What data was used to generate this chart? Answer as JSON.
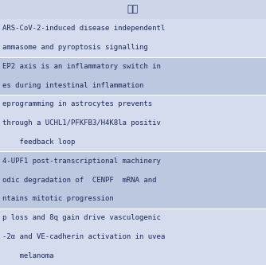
{
  "title": "题目",
  "title_bg": "#cdd5e8",
  "text_color": "#1a2a5a",
  "font_size": 6.5,
  "title_font_size": 8.5,
  "rows": [
    [
      "ARS-CoV-2-induced disease independentl",
      "ammasome and pyroptosis signalling"
    ],
    [
      "EP2 axis is an inflammatory switch in",
      "es during intestinal inflammation"
    ],
    [
      "eprogramming in astrocytes prevents",
      "through a UCHL1/PFKFB3/H4K8la positiv",
      "    feedback loop"
    ],
    [
      "4-UPF1 post-transcriptional machinery",
      "odic degradation of  CENPF  mRNA and",
      "ntains mitotic progression"
    ],
    [
      "p loss and 8q gain drive vasculogenic",
      "-2α and VE-cadherin activation in uvea",
      "    melanoma"
    ]
  ],
  "row_colors": [
    "#d4dcee",
    "#bbc8e0",
    "#d4dcee",
    "#bbc8e0",
    "#d4dcee"
  ],
  "header_color": "#cdd5e8",
  "separator_color": "#ffffff",
  "figsize": [
    3.34,
    3.33
  ],
  "dpi": 100
}
